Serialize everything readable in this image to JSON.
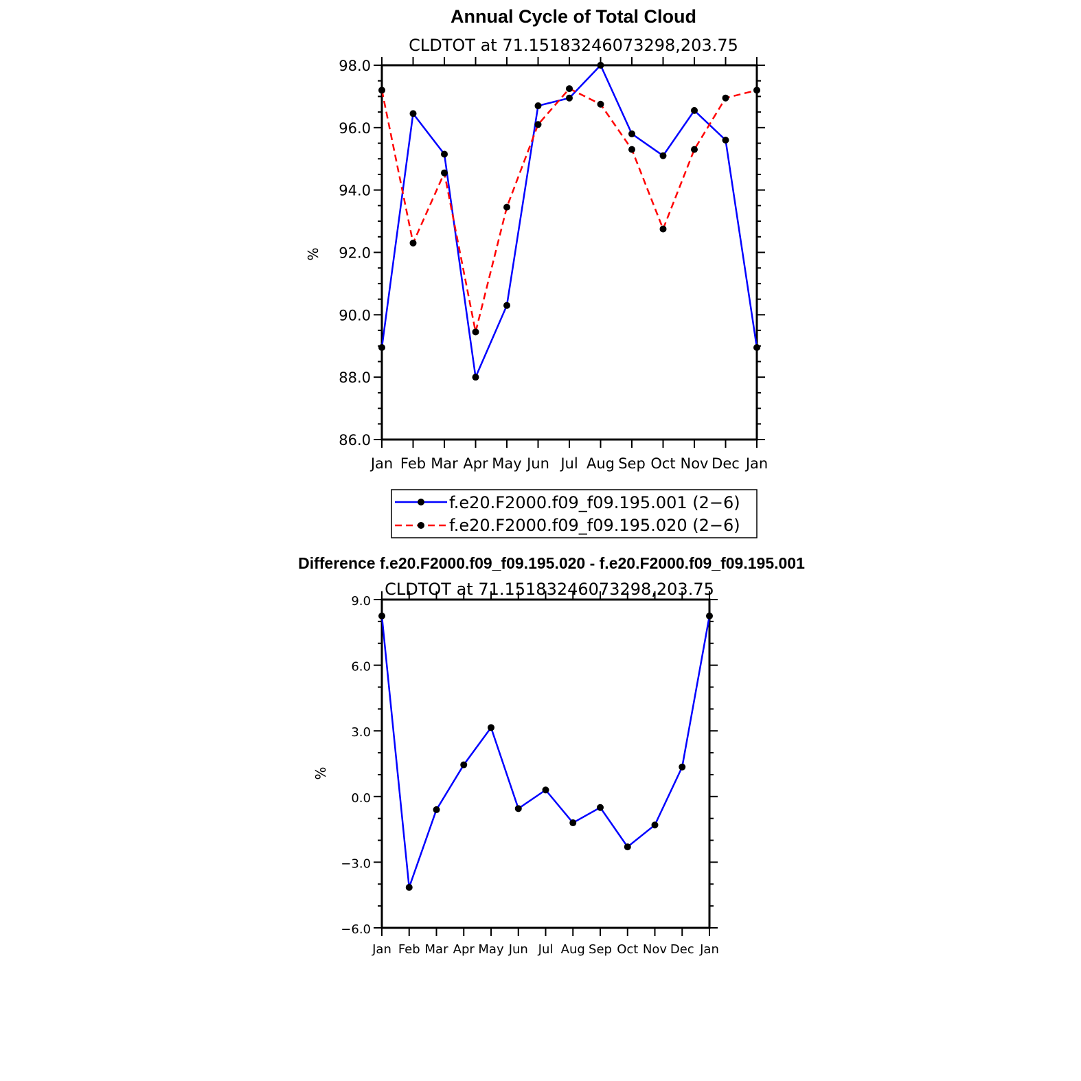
{
  "chart_data": [
    {
      "type": "line",
      "title": "Annual Cycle of Total Cloud",
      "subtitle": "CLDTOT at 71.15183246073298,203.75",
      "ylabel": "%",
      "xlabel": "",
      "ylim": [
        86.0,
        98.0
      ],
      "yticks": [
        "86.0",
        "88.0",
        "90.0",
        "92.0",
        "94.0",
        "96.0",
        "98.0"
      ],
      "categories": [
        "Jan",
        "Feb",
        "Mar",
        "Apr",
        "May",
        "Jun",
        "Jul",
        "Aug",
        "Sep",
        "Oct",
        "Nov",
        "Dec",
        "Jan"
      ],
      "series": [
        {
          "name": "f.e20.F2000.f09_f09.195.001 (2−6)",
          "color": "#0000ff",
          "dash": "solid",
          "values": [
            88.95,
            96.45,
            95.15,
            88.0,
            90.3,
            96.7,
            96.95,
            98.0,
            95.8,
            95.1,
            96.55,
            95.6,
            88.95
          ]
        },
        {
          "name": "f.e20.F2000.f09_f09.195.020 (2−6)",
          "color": "#ff0000",
          "dash": "dashed",
          "values": [
            97.2,
            92.3,
            94.55,
            89.45,
            93.45,
            96.1,
            97.25,
            96.75,
            95.3,
            92.75,
            95.3,
            96.95,
            97.2
          ]
        }
      ],
      "grid": false,
      "legend": "below"
    },
    {
      "type": "line",
      "title": "Difference f.e20.F2000.f09_f09.195.020 - f.e20.F2000.f09_f09.195.001",
      "subtitle": "CLDTOT at 71.15183246073298,203.75",
      "ylabel": "%",
      "xlabel": "",
      "ylim": [
        -6.0,
        9.0
      ],
      "yticks": [
        "−6.0",
        "−3.0",
        "0.0",
        "3.0",
        "6.0",
        "9.0"
      ],
      "categories": [
        "Jan",
        "Feb",
        "Mar",
        "Apr",
        "May",
        "Jun",
        "Jul",
        "Aug",
        "Sep",
        "Oct",
        "Nov",
        "Dec",
        "Jan"
      ],
      "series": [
        {
          "color": "#0000ff",
          "dash": "solid",
          "values": [
            8.25,
            -4.15,
            -0.6,
            1.45,
            3.15,
            -0.55,
            0.3,
            -1.2,
            -0.5,
            -2.3,
            -1.3,
            1.35,
            8.25
          ]
        }
      ],
      "grid": false,
      "legend": "none"
    }
  ]
}
